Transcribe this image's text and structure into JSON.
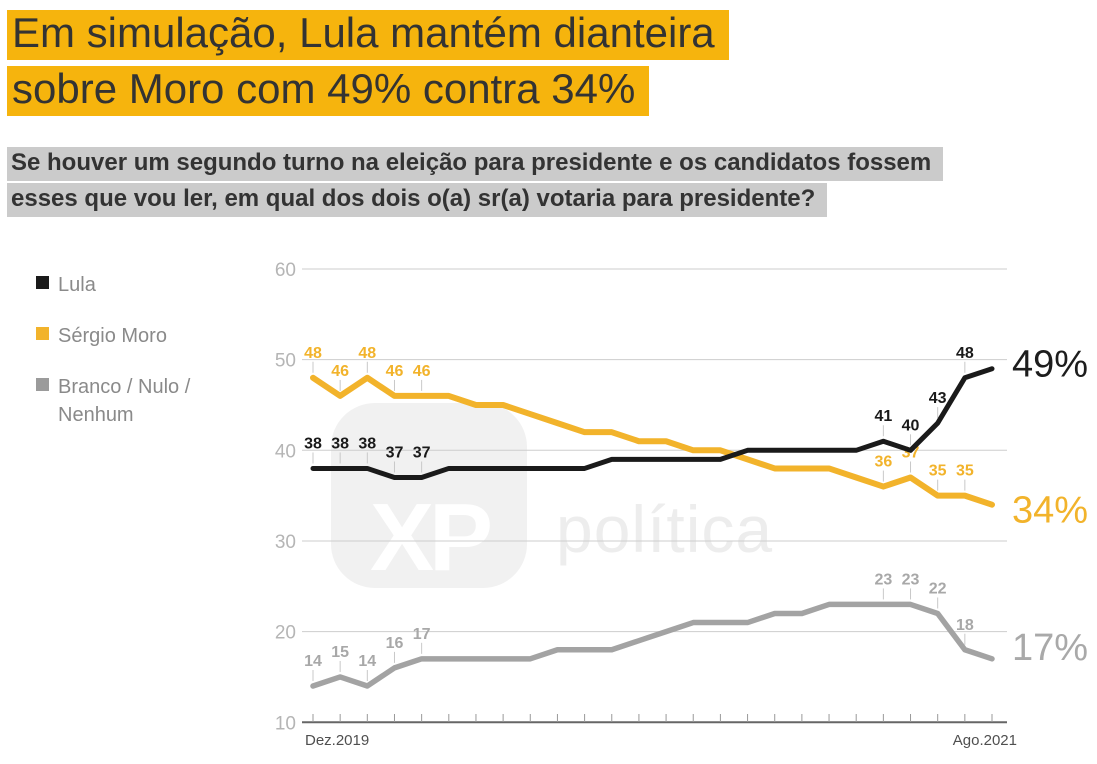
{
  "title": {
    "line1": "Em simulação, Lula mantém dianteira",
    "line2": "sobre Moro com 49% contra 34%",
    "highlight_color": "#F6B40D",
    "text_color": "#333333"
  },
  "subtitle": {
    "line1": "Se houver um segundo turno na eleição para presidente e os candidatos fossem",
    "line2": "esses que vou ler, em qual dos dois o(a) sr(a) votaria para presidente?",
    "highlight_color": "#CBCBCB"
  },
  "legend": {
    "items": [
      {
        "label": "Lula",
        "color": "#1A1A1A"
      },
      {
        "label": "Sérgio Moro",
        "color": "#F2B32B"
      },
      {
        "label": "Branco / Nulo /\nNenhum",
        "color": "#9B9B9B"
      }
    ]
  },
  "watermark": {
    "logo_text": "XP",
    "brand_text": "política"
  },
  "chart_data": {
    "type": "line",
    "n_points": 26,
    "x_axis": {
      "start_label": "Dez.2019",
      "end_label": "Ago.2021"
    },
    "y_axis": {
      "min": 10,
      "max": 60,
      "ticks": [
        60,
        50,
        40,
        30,
        20,
        10
      ]
    },
    "grid": true,
    "legend_position": "left",
    "series": [
      {
        "name": "Lula",
        "color": "#1A1A1A",
        "label_color": "#1A1A1A",
        "end_label": "49%",
        "end_label_color": "#1D1D1D",
        "labeled_indices": [
          0,
          1,
          2,
          3,
          4,
          21,
          22,
          23,
          24
        ],
        "values": [
          38,
          38,
          38,
          37,
          37,
          38,
          38,
          38,
          38,
          38,
          38,
          39,
          39,
          39,
          39,
          39,
          40,
          40,
          40,
          40,
          40,
          41,
          40,
          43,
          48,
          49
        ]
      },
      {
        "name": "Sérgio Moro",
        "color": "#F2B32B",
        "label_color": "#F2B32B",
        "end_label": "34%",
        "end_label_color": "#F2B32B",
        "labeled_indices": [
          0,
          1,
          2,
          3,
          4,
          21,
          22,
          23,
          24
        ],
        "values": [
          48,
          46,
          48,
          46,
          46,
          46,
          45,
          45,
          44,
          43,
          42,
          42,
          41,
          41,
          40,
          40,
          39,
          38,
          38,
          38,
          37,
          36,
          37,
          35,
          35,
          34
        ]
      },
      {
        "name": "Branco / Nulo / Nenhum",
        "color": "#A3A3A3",
        "label_color": "#A8A8A8",
        "end_label": "17%",
        "end_label_color": "#A9A9A9",
        "labeled_indices": [
          0,
          1,
          2,
          3,
          4,
          21,
          22,
          23,
          24
        ],
        "values": [
          14,
          15,
          14,
          16,
          17,
          17,
          17,
          17,
          17,
          18,
          18,
          18,
          19,
          20,
          21,
          21,
          21,
          22,
          22,
          23,
          23,
          23,
          23,
          22,
          18,
          17
        ]
      }
    ]
  }
}
